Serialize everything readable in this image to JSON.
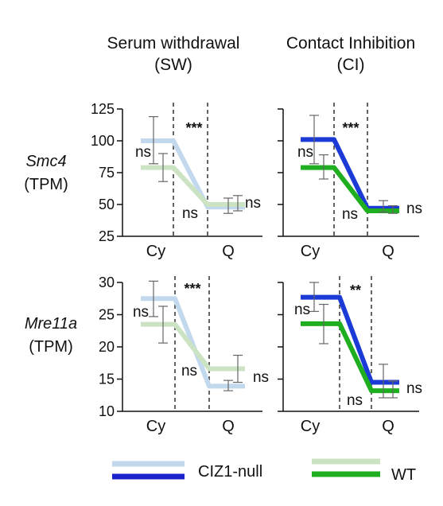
{
  "figure": {
    "columns": [
      {
        "title_line1": "Serum withdrawal",
        "title_line2": "(SW)"
      },
      {
        "title_line1": "Contact Inhibition",
        "title_line2": "(CI)"
      }
    ],
    "rows": [
      {
        "gene": "Smc4",
        "unit": "(TPM)"
      },
      {
        "gene": "Mre11a",
        "unit": "(TPM)"
      }
    ],
    "legend": [
      {
        "label": "CIZ1-null",
        "colors": [
          "#c2d8ec",
          "#1c22c9"
        ]
      },
      {
        "label": "WT",
        "colors": [
          "#cbe3c3",
          "#1fae1f"
        ]
      }
    ]
  },
  "chart_data": [
    {
      "type": "line",
      "panel": "Smc4 SW",
      "categories": [
        "Cy",
        "Q"
      ],
      "ylim": [
        25,
        125
      ],
      "yticks": [
        25,
        50,
        75,
        100,
        125
      ],
      "series": [
        {
          "name": "CIZ1-null",
          "color": "#c2d8ec",
          "values": [
            100,
            48
          ],
          "error": [
            [
              82,
              119
            ],
            [
              43,
              55
            ]
          ]
        },
        {
          "name": "WT",
          "color": "#cbe3c3",
          "values": [
            79,
            50
          ],
          "error": [
            [
              68,
              90
            ],
            [
              45,
              57
            ]
          ]
        }
      ],
      "annotations": [
        {
          "text": "ns",
          "where": "Cy"
        },
        {
          "text": "***",
          "where": "transition"
        },
        {
          "text": "ns",
          "where": "Q"
        },
        {
          "text": "ns",
          "where": "right"
        }
      ]
    },
    {
      "type": "line",
      "panel": "Smc4 CI",
      "categories": [
        "Cy",
        "Q"
      ],
      "ylim": [
        25,
        125
      ],
      "yticks": [
        25,
        50,
        75,
        100,
        125
      ],
      "series": [
        {
          "name": "CIZ1-null",
          "color": "#1c3bd6",
          "values": [
            101,
            47
          ],
          "error": [
            [
              82,
              120
            ],
            [
              44,
              53
            ]
          ]
        },
        {
          "name": "WT",
          "color": "#1fae1f",
          "values": [
            79,
            45
          ],
          "error": [
            [
              70,
              89
            ],
            [
              43,
              49
            ]
          ]
        }
      ],
      "annotations": [
        {
          "text": "ns",
          "where": "Cy"
        },
        {
          "text": "***",
          "where": "transition"
        },
        {
          "text": "ns",
          "where": "Q"
        },
        {
          "text": "ns",
          "where": "right"
        }
      ]
    },
    {
      "type": "line",
      "panel": "Mre11a SW",
      "categories": [
        "Cy",
        "Q"
      ],
      "ylim": [
        10,
        30
      ],
      "yticks": [
        10,
        15,
        20,
        25,
        30
      ],
      "series": [
        {
          "name": "CIZ1-null",
          "color": "#c2d8ec",
          "values": [
            27.5,
            13.9
          ],
          "error": [
            [
              24.7,
              30.2
            ],
            [
              13.2,
              14.8
            ]
          ]
        },
        {
          "name": "WT",
          "color": "#cbe3c3",
          "values": [
            23.5,
            16.6
          ],
          "error": [
            [
              20.6,
              26.3
            ],
            [
              14.5,
              18.7
            ]
          ]
        }
      ],
      "annotations": [
        {
          "text": "ns",
          "where": "Cy"
        },
        {
          "text": "***",
          "where": "transition"
        },
        {
          "text": "ns",
          "where": "Q"
        },
        {
          "text": "ns",
          "where": "right"
        }
      ]
    },
    {
      "type": "line",
      "panel": "Mre11a CI",
      "categories": [
        "Cy",
        "Q"
      ],
      "ylim": [
        10,
        30
      ],
      "yticks": [
        10,
        15,
        20,
        25,
        30
      ],
      "series": [
        {
          "name": "CIZ1-null",
          "color": "#1c3bd6",
          "values": [
            27.7,
            14.5
          ],
          "error": [
            [
              25.5,
              30.0
            ],
            [
              12.1,
              17.3
            ]
          ]
        },
        {
          "name": "WT",
          "color": "#1fae1f",
          "values": [
            23.6,
            13.2
          ],
          "error": [
            [
              20.5,
              26.6
            ],
            [
              12.1,
              14.7
            ]
          ]
        }
      ],
      "annotations": [
        {
          "text": "ns",
          "where": "Cy"
        },
        {
          "text": "**",
          "where": "transition"
        },
        {
          "text": "ns",
          "where": "Q"
        },
        {
          "text": "ns",
          "where": "right"
        }
      ]
    }
  ]
}
